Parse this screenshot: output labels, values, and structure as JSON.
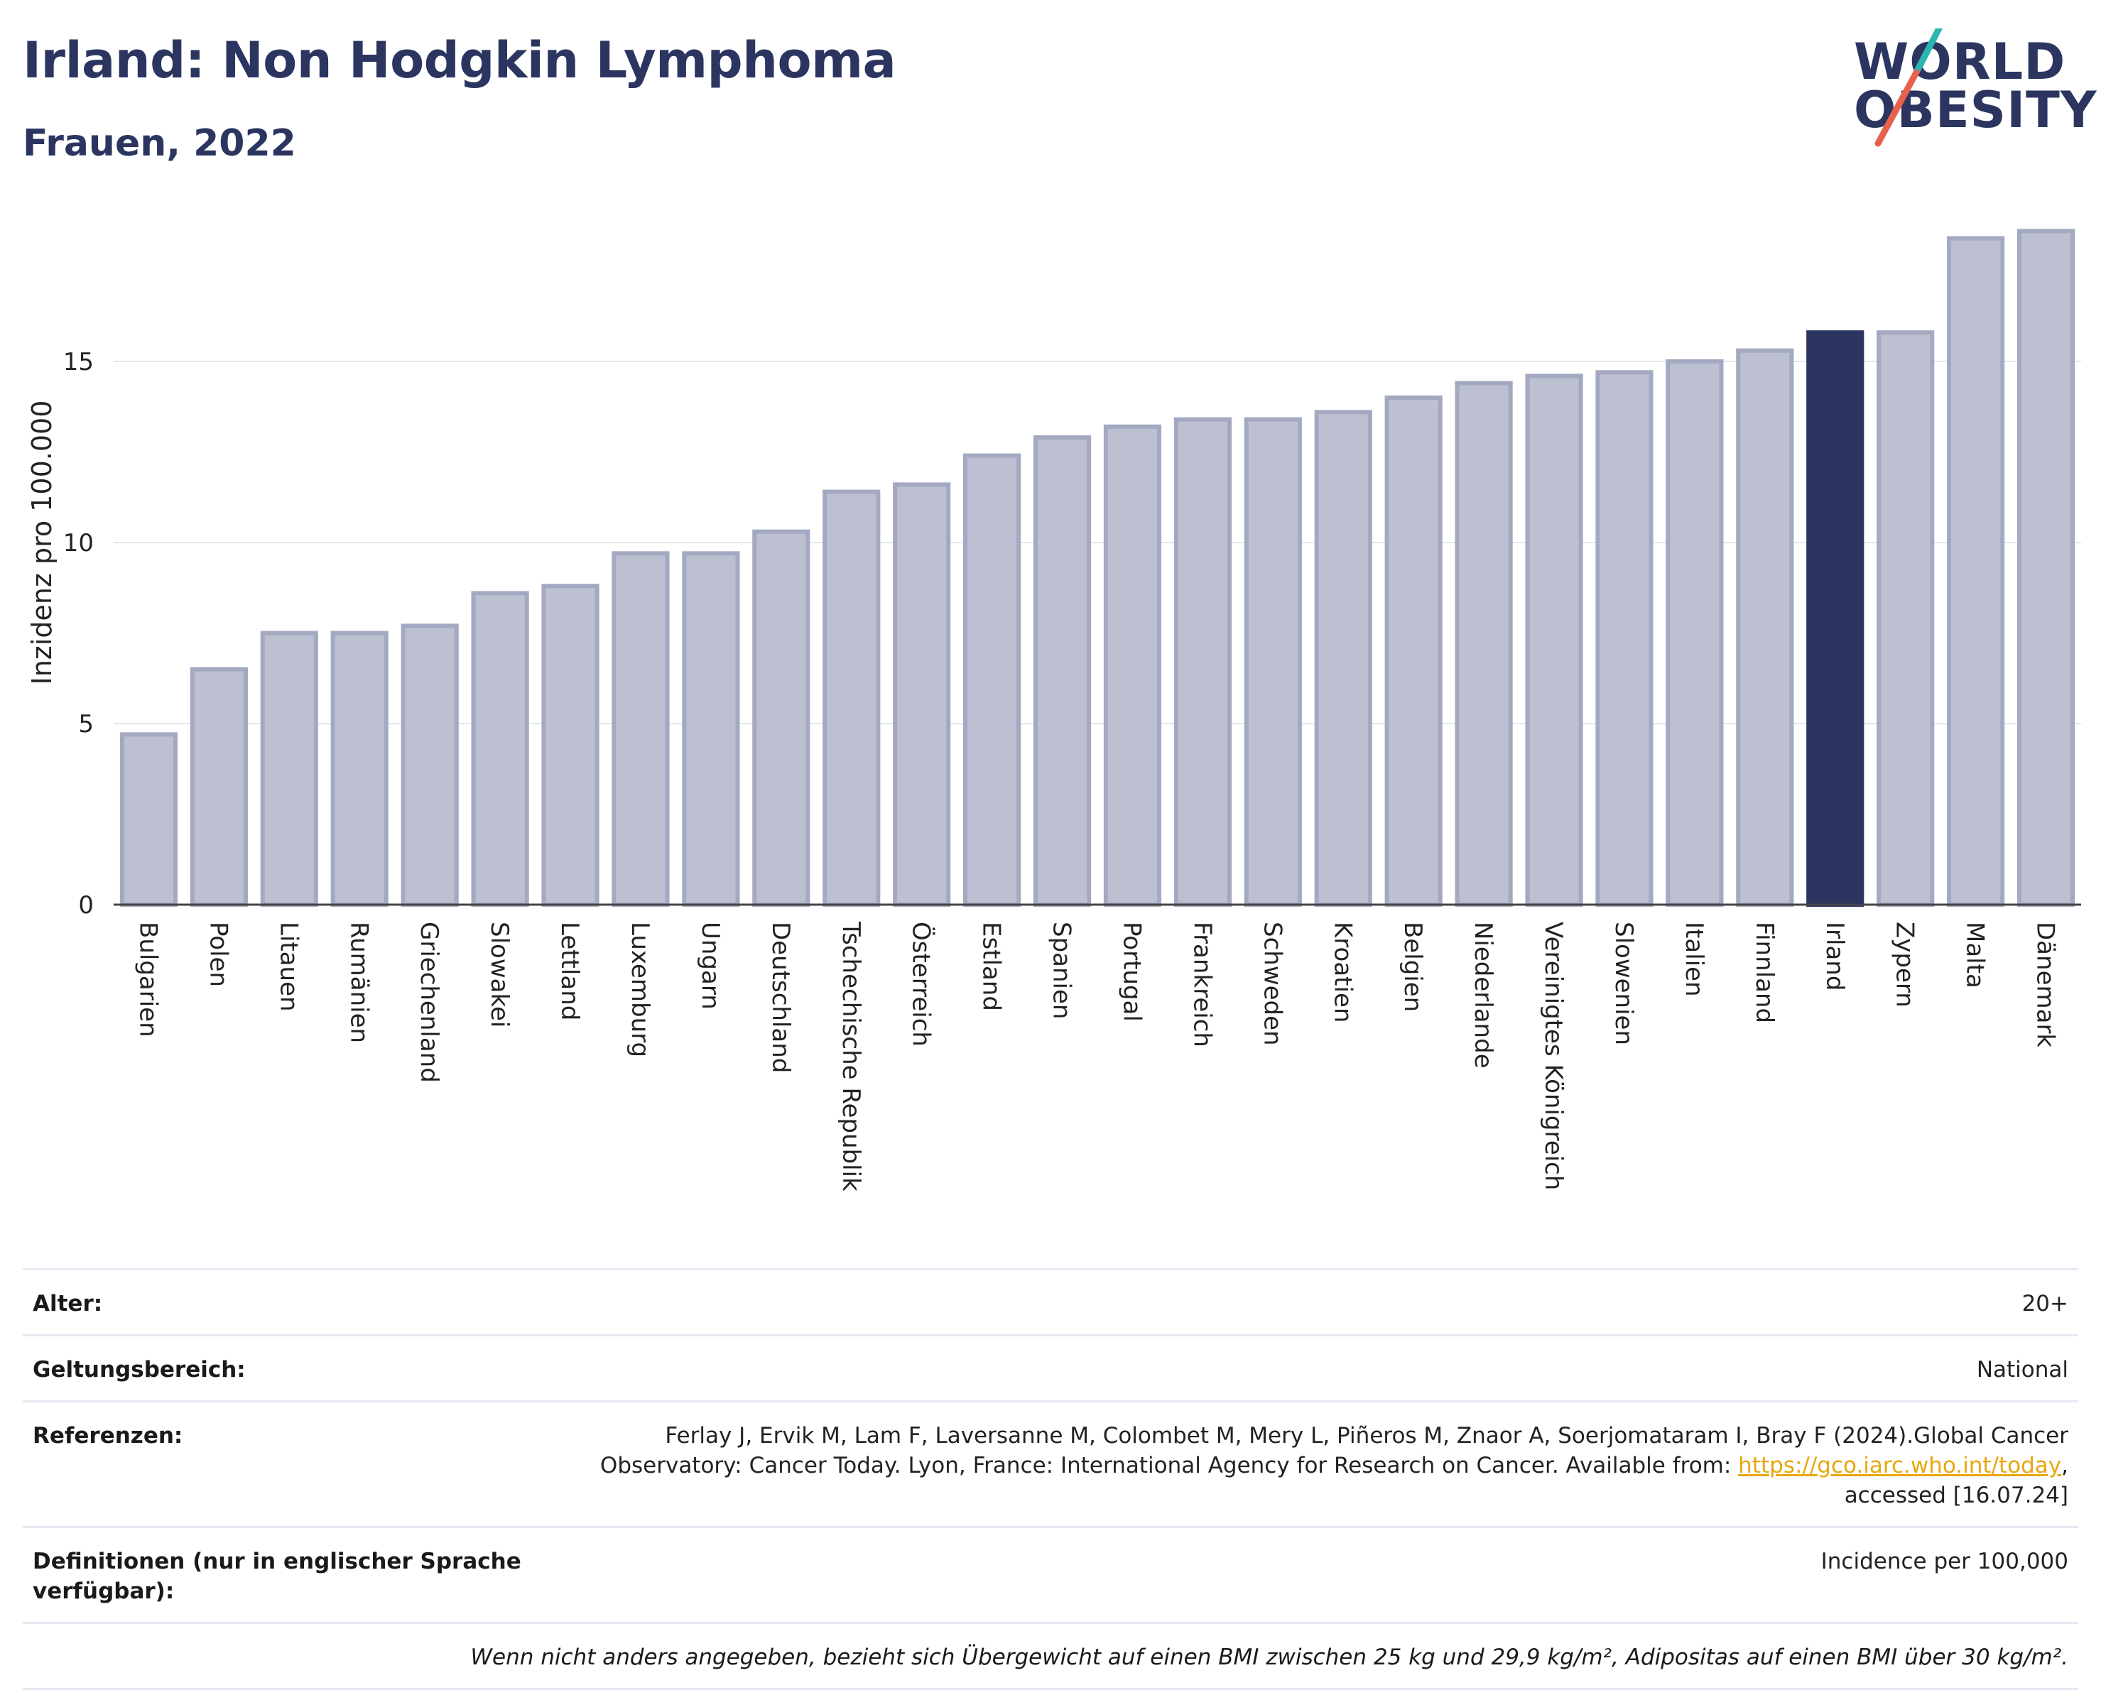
{
  "title": "Irland: Non Hodgkin Lymphoma",
  "subtitle": "Frauen, 2022",
  "logo": {
    "line1": "WORLD",
    "line2": "OBESITY",
    "colors": {
      "text": "#2b3560",
      "slash_top": "#2bb5b0",
      "slash_bottom": "#e8614f"
    }
  },
  "colors": {
    "bar": "#bcc0d0",
    "bar_stroke": "#a3a9c0",
    "highlight": "#2b3560",
    "grid": "#e4e6ee"
  },
  "chart_data": {
    "type": "bar",
    "ylabel": "Inzidenz pro 100.000",
    "xlabel": "",
    "ylim": [
      0,
      19.2
    ],
    "yticks": [
      0,
      5,
      10,
      15
    ],
    "grid": true,
    "highlight": "Irland",
    "categories": [
      "Bulgarien",
      "Polen",
      "Litauen",
      "Rumänien",
      "Griechenland",
      "Slowakei",
      "Lettland",
      "Luxemburg",
      "Ungarn",
      "Deutschland",
      "Tschechische Republik",
      "Österreich",
      "Estland",
      "Spanien",
      "Portugal",
      "Frankreich",
      "Schweden",
      "Kroatien",
      "Belgien",
      "Niederlande",
      "Vereinigtes Königreich",
      "Slowenien",
      "Italien",
      "Finnland",
      "Irland",
      "Zypern",
      "Malta",
      "Dänemark"
    ],
    "values": [
      4.7,
      6.5,
      7.5,
      7.5,
      7.7,
      8.6,
      8.8,
      9.7,
      9.7,
      10.3,
      11.4,
      11.6,
      12.4,
      12.9,
      13.2,
      13.4,
      13.4,
      13.6,
      14.0,
      14.4,
      14.6,
      14.7,
      15.0,
      15.3,
      15.8,
      15.8,
      18.4,
      18.6
    ]
  },
  "info": {
    "age_key": "Alter:",
    "age_val": "20+",
    "scope_key": "Geltungsbereich:",
    "scope_val": "National",
    "ref_key": "Referenzen:",
    "ref_line1": "Ferlay J, Ervik M, Lam F, Laversanne M, Colombet M, Mery L, Piñeros M, Znaor A, Soerjomataram I, Bray F (2024).Global Cancer",
    "ref_line2": "Observatory: Cancer Today. Lyon, France: International Agency for Research on Cancer. Available from: ",
    "ref_link": "https://gco.iarc.who.int/today",
    "ref_line2_end": ",",
    "ref_line3": "accessed [16.07.24]",
    "def_key": "Definitionen (nur in englischer Sprache verfügbar):",
    "def_val": "Incidence per 100,000",
    "note": "Wenn nicht anders angegeben, bezieht sich Übergewicht auf einen BMI zwischen 25 kg und 29,9 kg/m², Adipositas auf einen BMI über 30 kg/m²."
  }
}
